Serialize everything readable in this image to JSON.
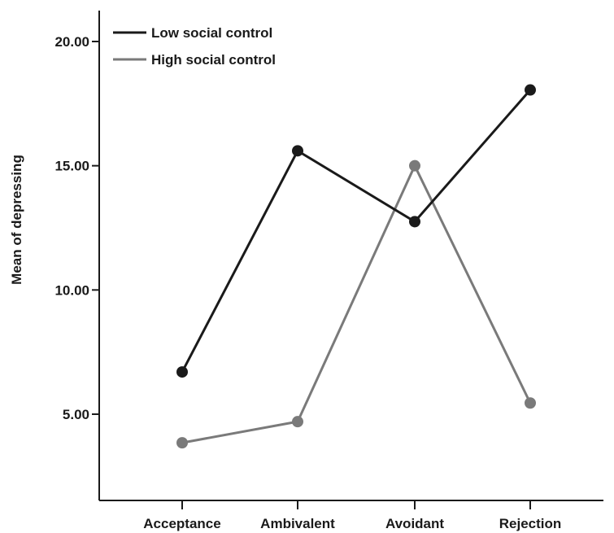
{
  "chart_data": {
    "type": "line",
    "title": "",
    "xlabel": "",
    "ylabel": "Mean of depressing",
    "categories": [
      "Acceptance",
      "Ambivalent",
      "Avoidant",
      "Rejection"
    ],
    "yticks": [
      "5.00",
      "10.00",
      "15.00",
      "20.00"
    ],
    "ytick_values": [
      5,
      10,
      15,
      20
    ],
    "ylim": [
      1.3,
      22.3
    ],
    "grid": false,
    "legend_position": "top-left",
    "series": [
      {
        "name": "Low social control",
        "color": "#1a1a1a",
        "values": [
          6.7,
          15.6,
          12.75,
          18.05
        ]
      },
      {
        "name": "High social control",
        "color": "#7a7a7a",
        "values": [
          3.85,
          4.7,
          15.0,
          5.45
        ]
      }
    ]
  }
}
